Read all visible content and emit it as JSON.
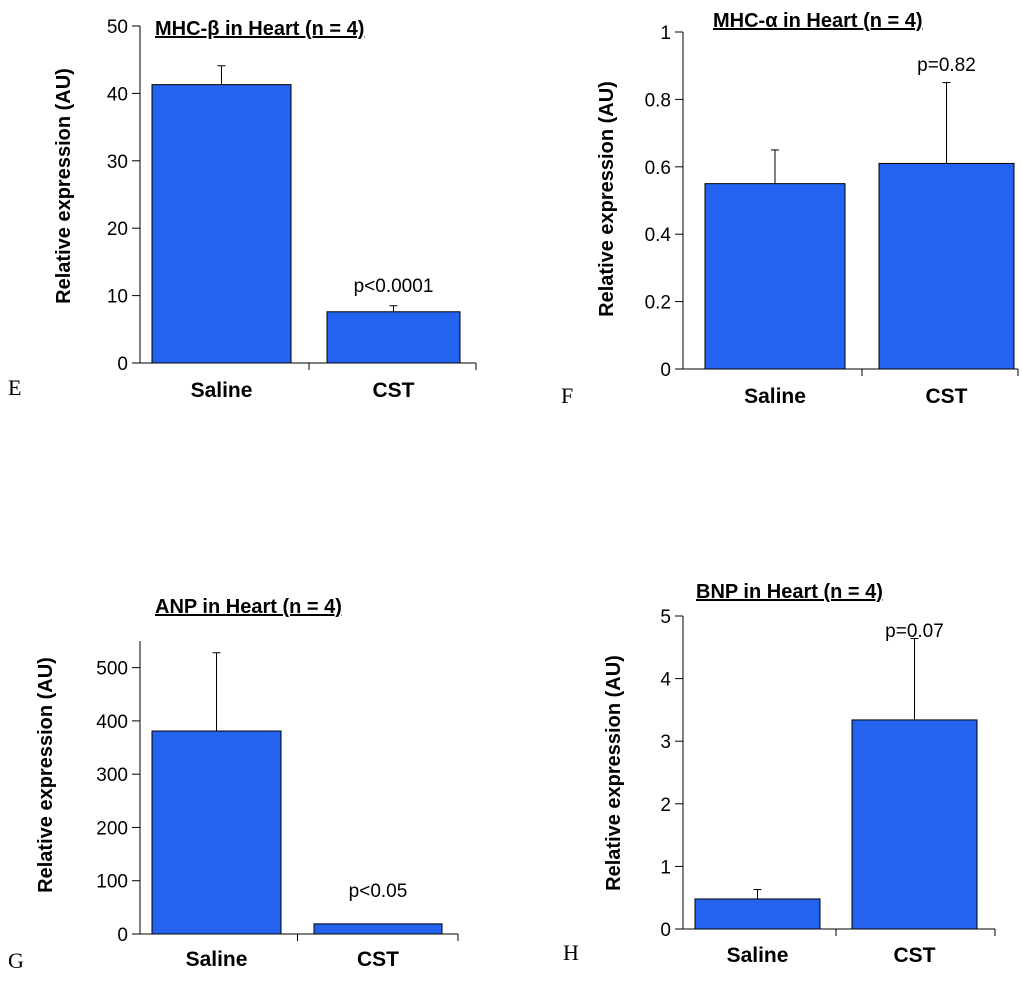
{
  "chart_data": [
    {
      "type": "bar",
      "panel": "E",
      "title": "MHC-β in Heart (n = 4)",
      "ylabel": "Relative expression (AU)",
      "categories": [
        "Saline",
        "CST"
      ],
      "values": [
        41.3,
        7.6
      ],
      "errors": [
        2.8,
        0.9
      ],
      "ylim": [
        0,
        50
      ],
      "yticks": [
        0,
        10,
        20,
        30,
        40,
        50
      ],
      "annotation": "p<0.0001",
      "bar_color": "#2463f0"
    },
    {
      "type": "bar",
      "panel": "F",
      "title": "MHC-α in Heart (n = 4)",
      "ylabel": "Relative expression (AU)",
      "categories": [
        "Saline",
        "CST"
      ],
      "values": [
        0.55,
        0.61
      ],
      "errors": [
        0.1,
        0.24
      ],
      "ylim": [
        0,
        1
      ],
      "yticks": [
        0,
        0.2,
        0.4,
        0.6,
        0.8,
        1
      ],
      "annotation": "p=0.82",
      "bar_color": "#2463f0"
    },
    {
      "type": "bar",
      "panel": "G",
      "title": "ANP in Heart (n = 4)",
      "ylabel": "Relative expression (AU)",
      "categories": [
        "Saline",
        "CST"
      ],
      "values": [
        381,
        19
      ],
      "errors": [
        147,
        0
      ],
      "ylim": [
        0,
        550
      ],
      "yticks": [
        0,
        100,
        200,
        300,
        400,
        500
      ],
      "annotation": "p<0.05",
      "bar_color": "#2463f0"
    },
    {
      "type": "bar",
      "panel": "H",
      "title": "BNP in Heart (n = 4)",
      "ylabel": "Relative expression (AU)",
      "categories": [
        "Saline",
        "CST"
      ],
      "values": [
        0.48,
        3.34
      ],
      "errors": [
        0.15,
        1.3
      ],
      "ylim": [
        0,
        5
      ],
      "yticks": [
        0,
        1,
        2,
        3,
        4,
        5
      ],
      "annotation": "p=0.07",
      "bar_color": "#2463f0"
    }
  ]
}
